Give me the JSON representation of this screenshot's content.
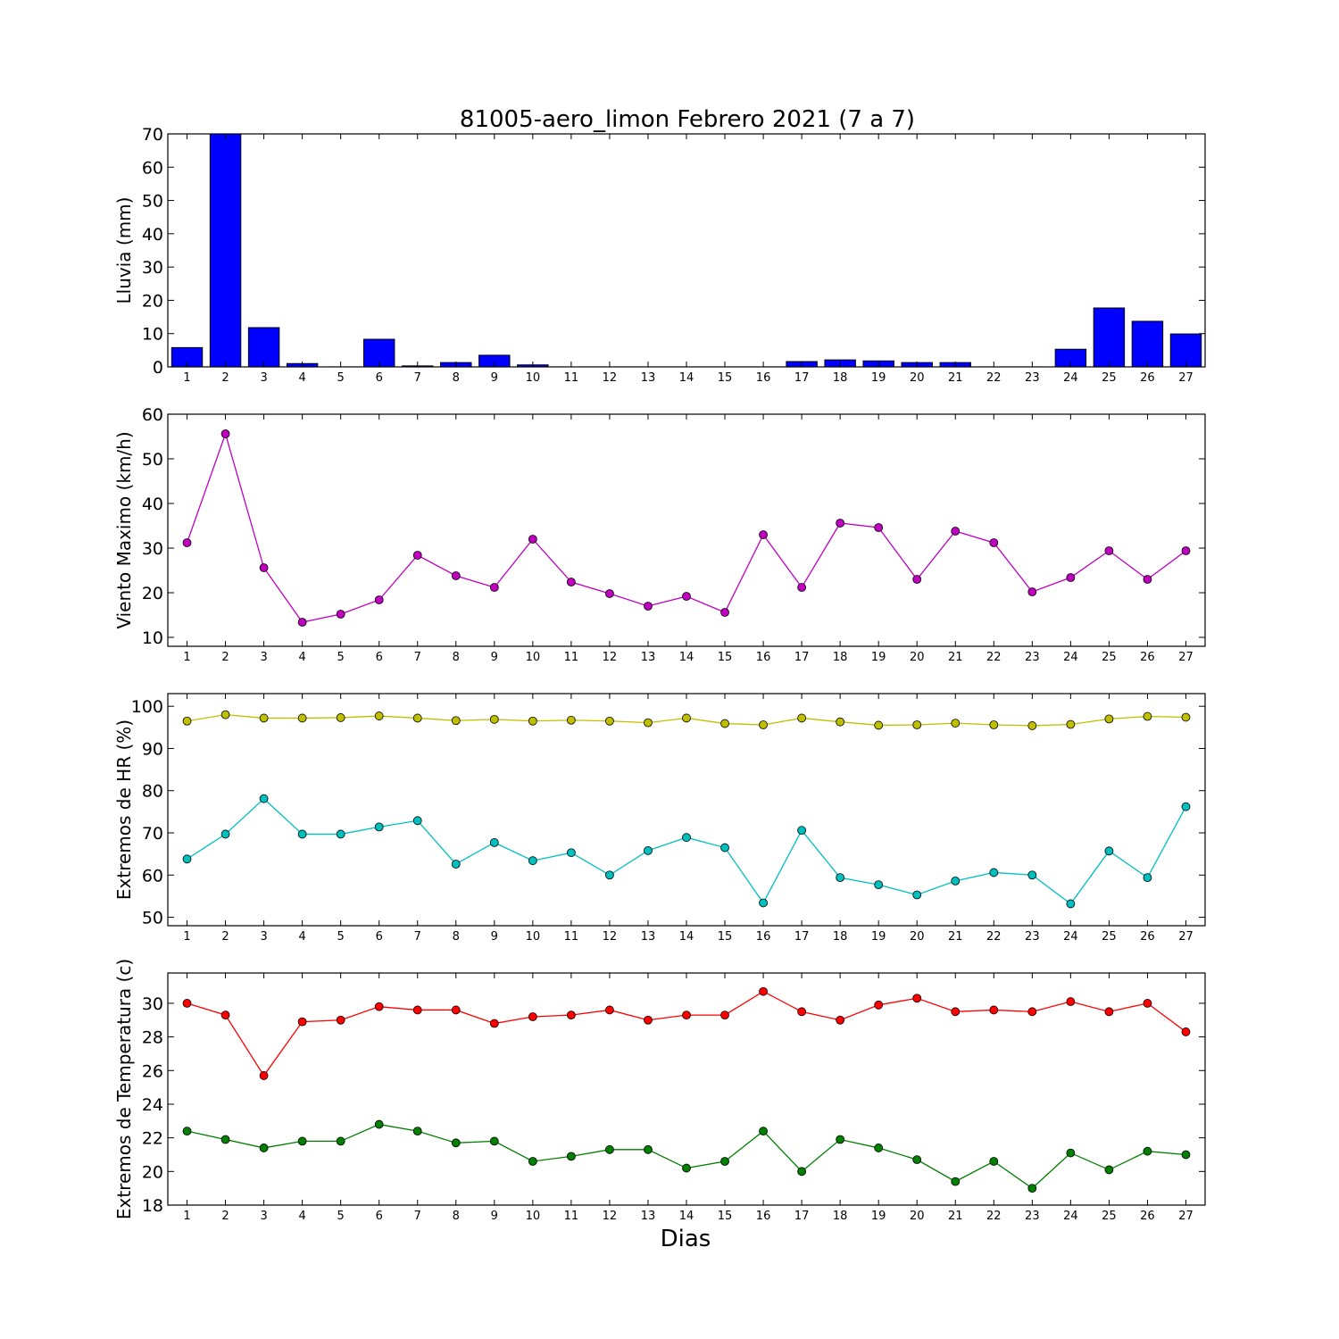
{
  "chart_data": {
    "title": "81005-aero_limon Febrero 2021  (7 a 7)",
    "xlabel": "Dias",
    "days": [
      1,
      2,
      3,
      4,
      5,
      6,
      7,
      8,
      9,
      10,
      11,
      12,
      13,
      14,
      15,
      16,
      17,
      18,
      19,
      20,
      21,
      22,
      23,
      24,
      25,
      26,
      27
    ],
    "panels": [
      {
        "type": "bar",
        "ylabel": "Lluvia (mm)",
        "ylim": [
          0,
          70
        ],
        "yticks": [
          0,
          10,
          20,
          30,
          40,
          50,
          60,
          70
        ],
        "series": [
          {
            "color": "#0000ff",
            "values": [
              5.8,
              70,
              11.8,
              1.0,
              0.0,
              8.3,
              0.3,
              1.3,
              3.5,
              0.6,
              0.0,
              0.0,
              0.0,
              0.0,
              0.0,
              0.0,
              1.6,
              2.1,
              1.8,
              1.3,
              1.3,
              0.0,
              0.0,
              5.3,
              17.7,
              13.7,
              9.9
            ]
          }
        ]
      },
      {
        "type": "line",
        "ylabel": "Viento Maximo (km/h)",
        "ylim": [
          8,
          60
        ],
        "yticks": [
          10,
          20,
          30,
          40,
          50,
          60
        ],
        "series": [
          {
            "color": "#bf00bf",
            "values": [
              31.2,
              55.6,
              25.6,
              13.4,
              15.2,
              18.4,
              28.4,
              23.8,
              21.2,
              32.0,
              22.4,
              19.8,
              17.0,
              19.2,
              15.6,
              33.0,
              21.2,
              35.6,
              34.6,
              23.0,
              33.8,
              31.2,
              20.2,
              23.4,
              29.4,
              23.0,
              29.4
            ]
          }
        ]
      },
      {
        "type": "line",
        "ylabel": "Extremos de HR (%)",
        "ylim": [
          48,
          103
        ],
        "yticks": [
          50,
          60,
          70,
          80,
          90,
          100
        ],
        "series": [
          {
            "color": "#bfbf00",
            "values": [
              96.5,
              98.0,
              97.2,
              97.2,
              97.3,
              97.7,
              97.2,
              96.6,
              96.9,
              96.5,
              96.7,
              96.5,
              96.1,
              97.2,
              95.9,
              95.6,
              97.2,
              96.3,
              95.5,
              95.6,
              96.0,
              95.6,
              95.4,
              95.7,
              97.0,
              97.6,
              97.4
            ]
          },
          {
            "color": "#00bfbf",
            "values": [
              63.8,
              69.7,
              78.1,
              69.7,
              69.7,
              71.4,
              72.9,
              62.6,
              67.7,
              63.4,
              65.3,
              60.0,
              65.8,
              68.9,
              66.5,
              53.4,
              70.6,
              59.4,
              57.7,
              55.3,
              58.6,
              60.6,
              60.0,
              53.2,
              65.7,
              59.4,
              76.2
            ]
          }
        ]
      },
      {
        "type": "line",
        "ylabel": "Extremos de Temperatura (c)",
        "ylim": [
          18,
          31.8
        ],
        "yticks": [
          18,
          20,
          22,
          24,
          26,
          28,
          30
        ],
        "series": [
          {
            "color": "#ff0000",
            "values": [
              30.0,
              29.3,
              25.7,
              28.9,
              29.0,
              29.8,
              29.6,
              29.6,
              28.8,
              29.2,
              29.3,
              29.6,
              29.0,
              29.3,
              29.3,
              30.7,
              29.5,
              29.0,
              29.9,
              30.3,
              29.5,
              29.6,
              29.5,
              30.1,
              29.5,
              30.0,
              28.3
            ]
          },
          {
            "color": "#007f00",
            "values": [
              22.4,
              21.9,
              21.4,
              21.8,
              21.8,
              22.8,
              22.4,
              21.7,
              21.8,
              20.6,
              20.9,
              21.3,
              21.3,
              20.2,
              20.6,
              22.4,
              20.0,
              21.9,
              21.4,
              20.7,
              19.4,
              20.6,
              19.0,
              21.1,
              20.1,
              21.2,
              21.0
            ]
          }
        ]
      }
    ]
  }
}
